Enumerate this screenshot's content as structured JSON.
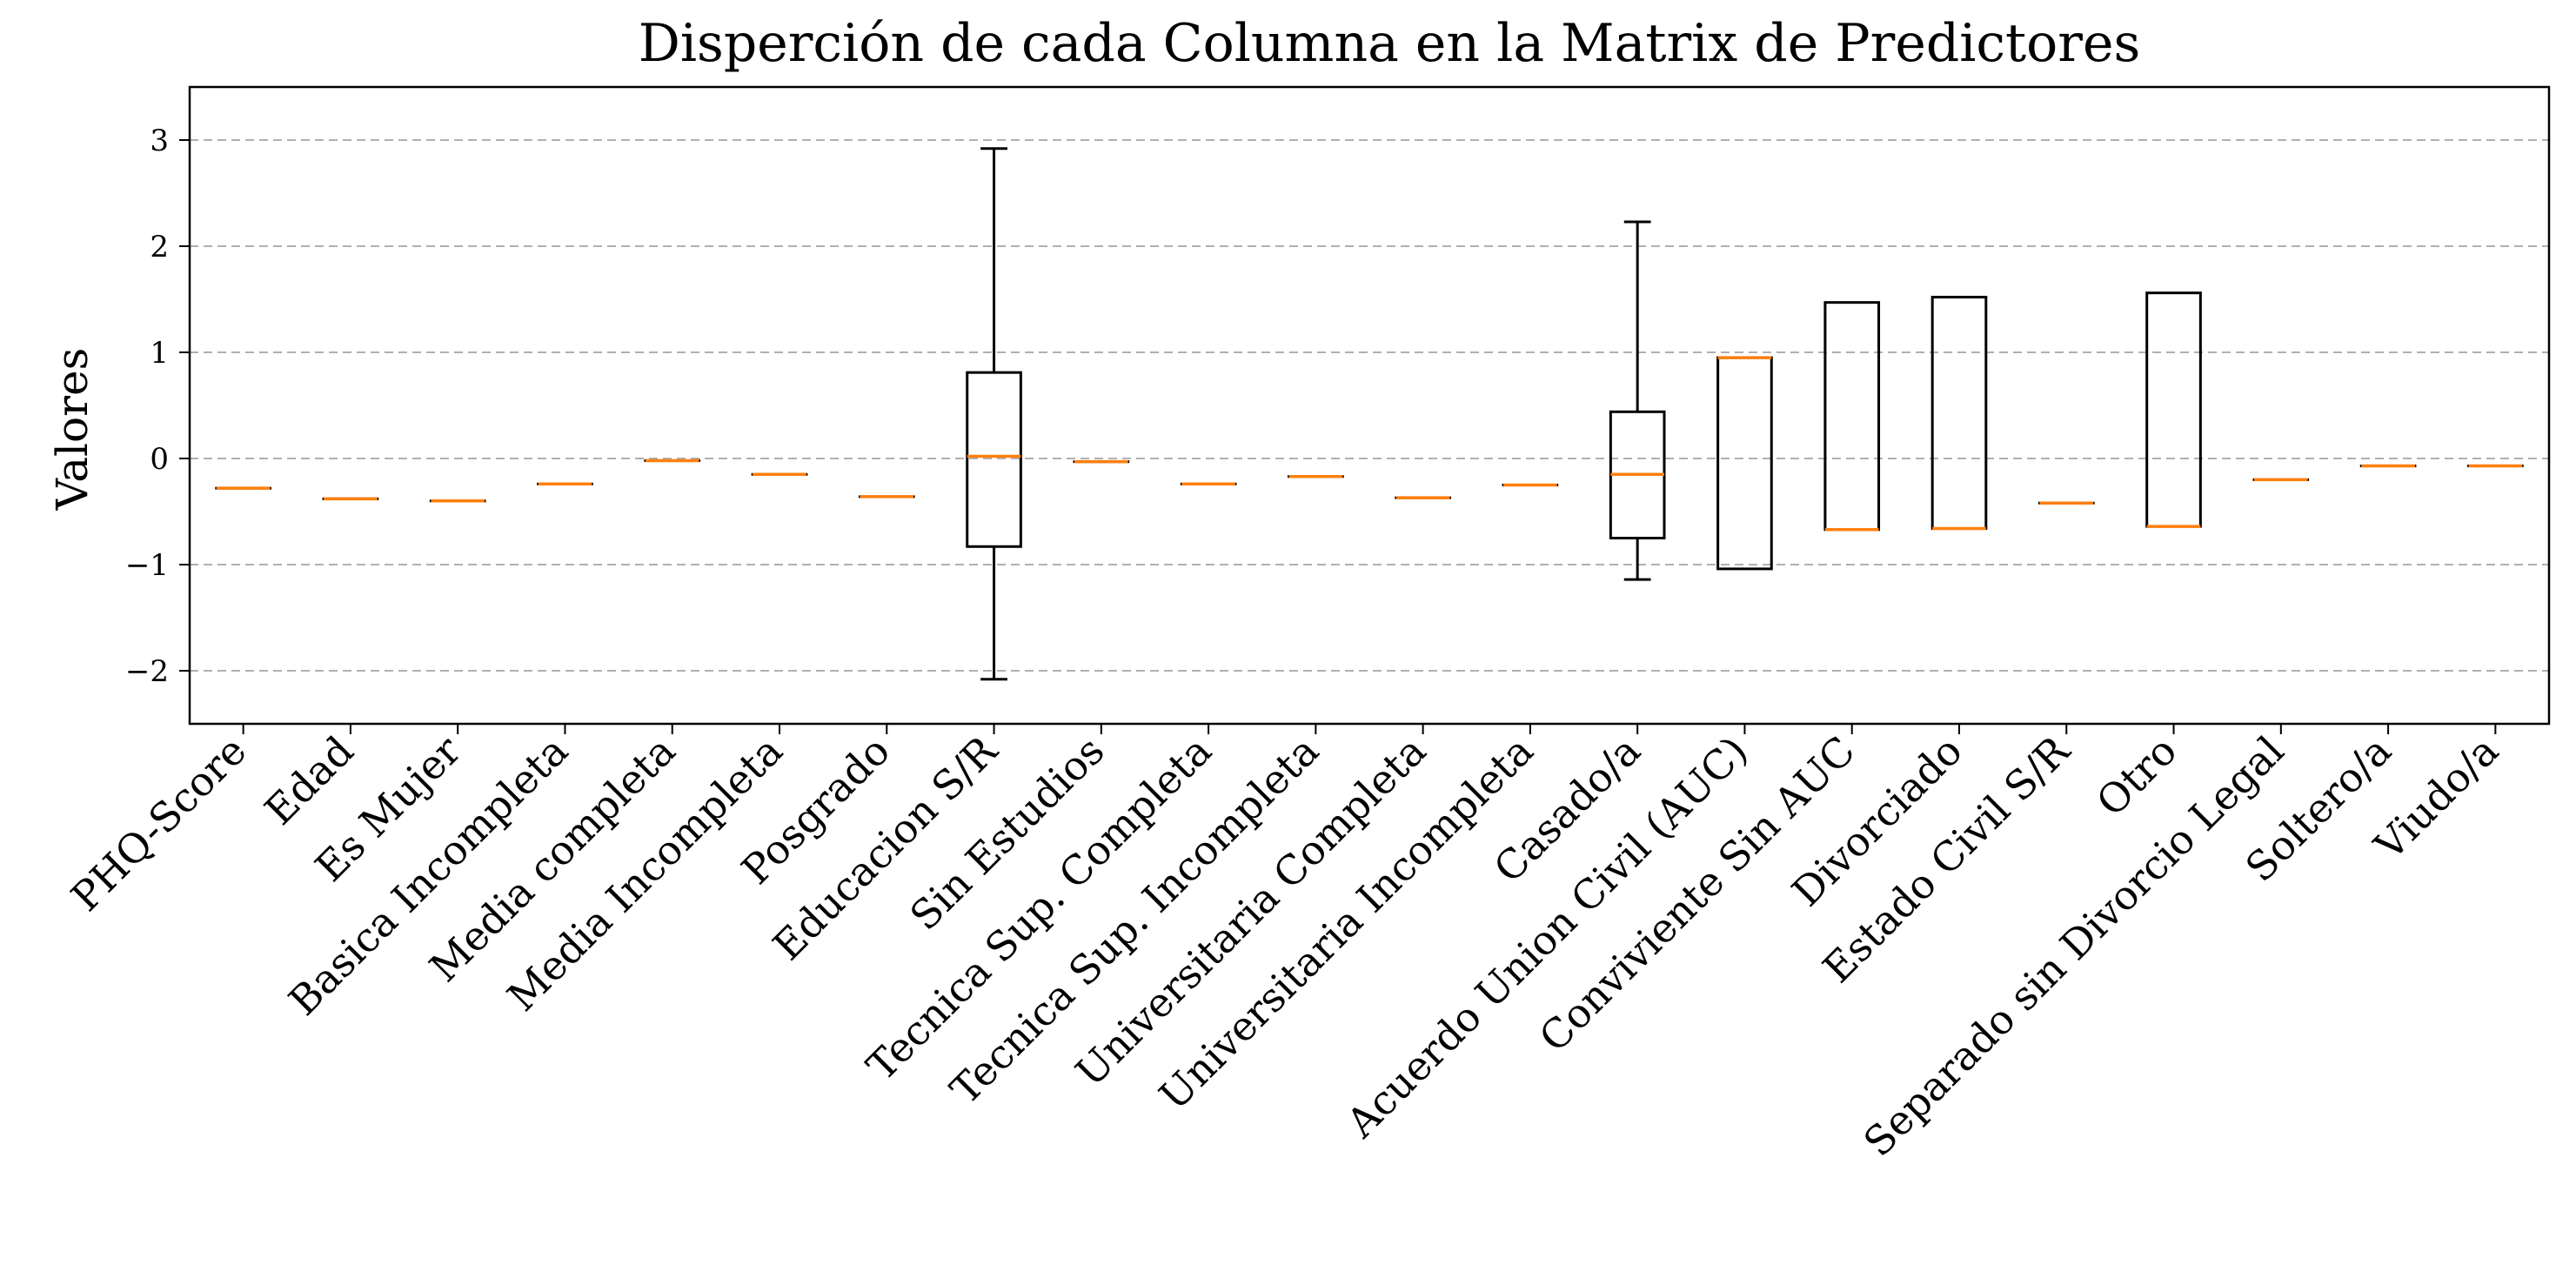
{
  "chart_data": {
    "type": "boxplot",
    "title": "Disperción de cada Columna en la Matrix de Predictores",
    "xlabel": "",
    "ylabel": "Valores",
    "ylim": [
      -2.5,
      3.5
    ],
    "yticks": [
      -2,
      -1,
      0,
      1,
      2,
      3
    ],
    "ytick_labels": [
      "−2",
      "−1",
      "0",
      "1",
      "2",
      "3"
    ],
    "grid": "y dashed",
    "colors": {
      "box": "#000000",
      "median": "#ff7f0e",
      "grid": "#b0b0b0"
    },
    "categories": [
      "PHQ-Score",
      "Edad",
      "Es Mujer",
      "Basica Incompleta",
      "Media completa",
      "Media Incompleta",
      "Posgrado",
      "Educacion S/R",
      "Sin Estudios",
      "Tecnica Sup. Completa",
      "Tecnica Sup. Incompleta",
      "Universitaria Completa",
      "Universitaria Incompleta",
      "Casado/a",
      "Acuerdo Union Civil (AUC)",
      "Conviviente Sin AUC",
      "Divorciado",
      "Estado Civil S/R",
      "Otro",
      "Separado sin Divorcio Legal",
      "Soltero/a",
      "Viudo/a"
    ],
    "boxes": [
      {
        "whislo": -0.28,
        "q1": -0.28,
        "med": -0.28,
        "q3": -0.28,
        "whishi": -0.28
      },
      {
        "whislo": -0.38,
        "q1": -0.38,
        "med": -0.38,
        "q3": -0.38,
        "whishi": -0.38
      },
      {
        "whislo": -0.4,
        "q1": -0.4,
        "med": -0.4,
        "q3": -0.4,
        "whishi": -0.4
      },
      {
        "whislo": -0.24,
        "q1": -0.24,
        "med": -0.24,
        "q3": -0.24,
        "whishi": -0.24
      },
      {
        "whislo": -0.02,
        "q1": -0.02,
        "med": -0.02,
        "q3": -0.02,
        "whishi": -0.02
      },
      {
        "whislo": -0.15,
        "q1": -0.15,
        "med": -0.15,
        "q3": -0.15,
        "whishi": -0.15
      },
      {
        "whislo": -0.36,
        "q1": -0.36,
        "med": -0.36,
        "q3": -0.36,
        "whishi": -0.36
      },
      {
        "whislo": -2.08,
        "q1": -0.83,
        "med": 0.02,
        "q3": 0.81,
        "whishi": 2.92
      },
      {
        "whislo": -0.03,
        "q1": -0.03,
        "med": -0.03,
        "q3": -0.03,
        "whishi": -0.03
      },
      {
        "whislo": -0.24,
        "q1": -0.24,
        "med": -0.24,
        "q3": -0.24,
        "whishi": -0.24
      },
      {
        "whislo": -0.17,
        "q1": -0.17,
        "med": -0.17,
        "q3": -0.17,
        "whishi": -0.17
      },
      {
        "whislo": -0.37,
        "q1": -0.37,
        "med": -0.37,
        "q3": -0.37,
        "whishi": -0.37
      },
      {
        "whislo": -0.25,
        "q1": -0.25,
        "med": -0.25,
        "q3": -0.25,
        "whishi": -0.25
      },
      {
        "whislo": -1.14,
        "q1": -0.75,
        "med": -0.15,
        "q3": 0.44,
        "whishi": 2.23
      },
      {
        "whislo": -1.04,
        "q1": -1.04,
        "med": 0.95,
        "q3": 0.95,
        "whishi": 0.95
      },
      {
        "whislo": -0.67,
        "q1": -0.67,
        "med": -0.67,
        "q3": 1.47,
        "whishi": 1.47
      },
      {
        "whislo": -0.66,
        "q1": -0.66,
        "med": -0.66,
        "q3": 1.52,
        "whishi": 1.52
      },
      {
        "whislo": -0.42,
        "q1": -0.42,
        "med": -0.42,
        "q3": -0.42,
        "whishi": -0.42
      },
      {
        "whislo": -0.64,
        "q1": -0.64,
        "med": -0.64,
        "q3": 1.56,
        "whishi": 1.56
      },
      {
        "whislo": -0.2,
        "q1": -0.2,
        "med": -0.2,
        "q3": -0.2,
        "whishi": -0.2
      },
      {
        "whislo": -0.07,
        "q1": -0.07,
        "med": -0.07,
        "q3": -0.07,
        "whishi": -0.07
      },
      {
        "whislo": -0.07,
        "q1": -0.07,
        "med": -0.07,
        "q3": -0.07,
        "whishi": -0.07
      }
    ]
  }
}
